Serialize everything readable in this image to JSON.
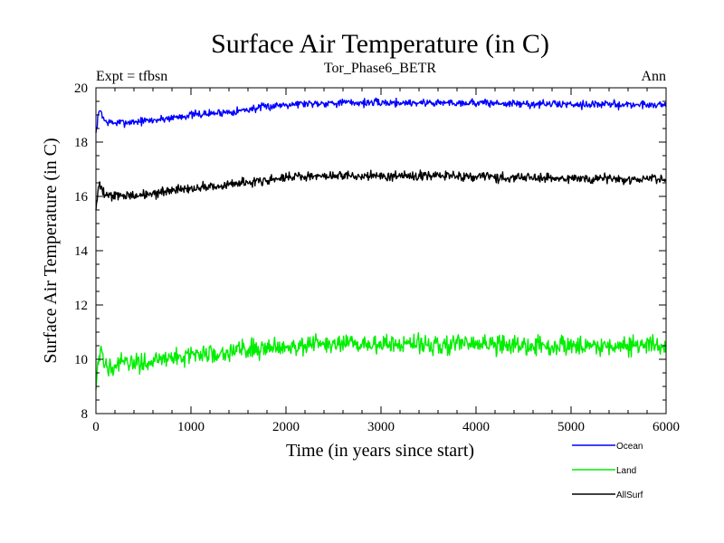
{
  "chart_data": {
    "type": "line",
    "title": "Surface Air Temperature (in C)",
    "subtitle_left": "Expt = tfbsn",
    "subtitle_center": "Tor_Phase6_BETR",
    "subtitle_right": "Ann",
    "xlabel": "Time (in years since start)",
    "ylabel": "Surface Air Temperature (in C)",
    "xlim": [
      0,
      6000
    ],
    "ylim": [
      8,
      20
    ],
    "xticks": [
      0,
      1000,
      2000,
      3000,
      4000,
      5000,
      6000
    ],
    "xtick_labels": [
      "0",
      "1000",
      "2000",
      "3000",
      "4000",
      "5000",
      "6000"
    ],
    "yticks": [
      8,
      10,
      12,
      14,
      16,
      18,
      20
    ],
    "ytick_labels": [
      "8",
      "10",
      "12",
      "14",
      "16",
      "18",
      "20"
    ],
    "legend_position": "bottom-right, below plot",
    "x": [
      0,
      25,
      50,
      75,
      100,
      200,
      400,
      600,
      800,
      1000,
      1200,
      1500,
      1800,
      2000,
      2500,
      3000,
      3500,
      4000,
      4500,
      5000,
      5500,
      6000
    ],
    "series": [
      {
        "name": "Ocean",
        "color": "#0000ff",
        "noise": 0.09,
        "values": [
          18.3,
          19.0,
          19.2,
          18.9,
          18.75,
          18.7,
          18.75,
          18.8,
          18.9,
          19.0,
          19.05,
          19.15,
          19.3,
          19.4,
          19.45,
          19.45,
          19.45,
          19.45,
          19.4,
          19.4,
          19.38,
          19.38
        ]
      },
      {
        "name": "Land",
        "color": "#00ee00",
        "noise": 0.22,
        "values": [
          9.0,
          9.8,
          10.2,
          10.0,
          9.8,
          9.8,
          9.85,
          9.95,
          10.05,
          10.15,
          10.2,
          10.35,
          10.45,
          10.5,
          10.55,
          10.55,
          10.55,
          10.55,
          10.5,
          10.5,
          10.5,
          10.5
        ]
      },
      {
        "name": "AllSurf",
        "color": "#000000",
        "noise": 0.11,
        "values": [
          15.5,
          16.2,
          16.4,
          16.2,
          16.05,
          16.0,
          16.05,
          16.1,
          16.2,
          16.3,
          16.35,
          16.5,
          16.6,
          16.7,
          16.75,
          16.75,
          16.75,
          16.75,
          16.7,
          16.65,
          16.65,
          16.65
        ]
      }
    ]
  }
}
